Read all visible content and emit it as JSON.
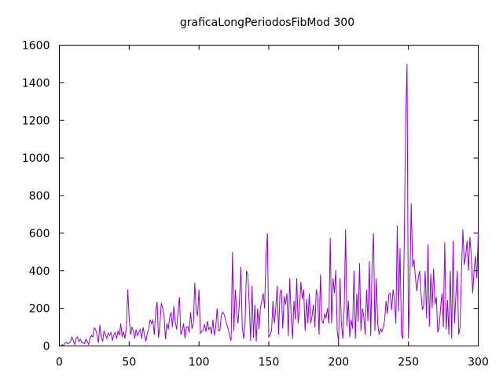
{
  "chart_data": {
    "type": "line",
    "title": "graficaLongPeriodosFibMod 300",
    "xlabel": "",
    "ylabel": "",
    "xlim": [
      0,
      300
    ],
    "ylim": [
      0,
      1600
    ],
    "xticks": [
      0,
      50,
      100,
      150,
      200,
      250,
      300
    ],
    "yticks": [
      0,
      200,
      400,
      600,
      800,
      1000,
      1200,
      1400,
      1600
    ],
    "grid": false,
    "legend": "none",
    "series_color": "#9400d3",
    "series": [
      {
        "values": [
          [
            1,
            3
          ],
          [
            2,
            8
          ],
          [
            3,
            1
          ],
          [
            4,
            16
          ],
          [
            5,
            20
          ],
          [
            6,
            12
          ],
          [
            7,
            16
          ],
          [
            8,
            24
          ],
          [
            9,
            48
          ],
          [
            10,
            28
          ],
          [
            11,
            8
          ],
          [
            12,
            40
          ],
          [
            13,
            48
          ],
          [
            14,
            24
          ],
          [
            15,
            36
          ],
          [
            16,
            20
          ],
          [
            17,
            20
          ],
          [
            18,
            12
          ],
          [
            19,
            36
          ],
          [
            20,
            24
          ],
          [
            21,
            8
          ],
          [
            22,
            40
          ],
          [
            23,
            56
          ],
          [
            24,
            48
          ],
          [
            25,
            96
          ],
          [
            26,
            88
          ],
          [
            27,
            60
          ],
          [
            28,
            16
          ],
          [
            29,
            112
          ],
          [
            30,
            48
          ],
          [
            31,
            24
          ],
          [
            32,
            80
          ],
          [
            33,
            60
          ],
          [
            34,
            40
          ],
          [
            35,
            68
          ],
          [
            36,
            56
          ],
          [
            37,
            72
          ],
          [
            38,
            28
          ],
          [
            39,
            60
          ],
          [
            40,
            72
          ],
          [
            41,
            40
          ],
          [
            42,
            80
          ],
          [
            43,
            56
          ],
          [
            44,
            120
          ],
          [
            45,
            48
          ],
          [
            46,
            76
          ],
          [
            47,
            40
          ],
          [
            48,
            100
          ],
          [
            49,
            300
          ],
          [
            50,
            150
          ],
          [
            51,
            60
          ],
          [
            52,
            100
          ],
          [
            53,
            80
          ],
          [
            54,
            40
          ],
          [
            55,
            88
          ],
          [
            56,
            56
          ],
          [
            57,
            72
          ],
          [
            58,
            88
          ],
          [
            59,
            40
          ],
          [
            60,
            100
          ],
          [
            61,
            56
          ],
          [
            62,
            24
          ],
          [
            63,
            68
          ],
          [
            64,
            88
          ],
          [
            65,
            140
          ],
          [
            66,
            120
          ],
          [
            67,
            136
          ],
          [
            68,
            60
          ],
          [
            69,
            180
          ],
          [
            70,
            236
          ],
          [
            71,
            44
          ],
          [
            72,
            112
          ],
          [
            73,
            228
          ],
          [
            74,
            200
          ],
          [
            75,
            160
          ],
          [
            76,
            36
          ],
          [
            77,
            120
          ],
          [
            78,
            88
          ],
          [
            79,
            152
          ],
          [
            80,
            180
          ],
          [
            81,
            100
          ],
          [
            82,
            212
          ],
          [
            83,
            128
          ],
          [
            84,
            88
          ],
          [
            85,
            188
          ],
          [
            86,
            260
          ],
          [
            87,
            60
          ],
          [
            88,
            80
          ],
          [
            89,
            120
          ],
          [
            90,
            40
          ],
          [
            91,
            100
          ],
          [
            92,
            104
          ],
          [
            93,
            72
          ],
          [
            94,
            180
          ],
          [
            95,
            92
          ],
          [
            96,
            120
          ],
          [
            97,
            336
          ],
          [
            98,
            192
          ],
          [
            99,
            160
          ],
          [
            100,
            300
          ],
          [
            101,
            68
          ],
          [
            102,
            80
          ],
          [
            103,
            84
          ],
          [
            104,
            116
          ],
          [
            105,
            76
          ],
          [
            106,
            132
          ],
          [
            107,
            88
          ],
          [
            108,
            100
          ],
          [
            109,
            64
          ],
          [
            110,
            140
          ],
          [
            111,
            56
          ],
          [
            112,
            100
          ],
          [
            113,
            200
          ],
          [
            114,
            80
          ],
          [
            115,
            84
          ],
          [
            116,
            164
          ],
          [
            117,
            180
          ],
          [
            118,
            168
          ],
          [
            119,
            140
          ],
          [
            120,
            112
          ],
          [
            121,
            88
          ],
          [
            122,
            48
          ],
          [
            123,
            28
          ],
          [
            124,
            500
          ],
          [
            125,
            80
          ],
          [
            126,
            300
          ],
          [
            127,
            180
          ],
          [
            128,
            120
          ],
          [
            129,
            240
          ],
          [
            130,
            420
          ],
          [
            131,
            100
          ],
          [
            132,
            40
          ],
          [
            133,
            120
          ],
          [
            134,
            400
          ],
          [
            135,
            380
          ],
          [
            136,
            220
          ],
          [
            137,
            28
          ],
          [
            138,
            320
          ],
          [
            139,
            44
          ],
          [
            140,
            220
          ],
          [
            141,
            24
          ],
          [
            142,
            200
          ],
          [
            143,
            88
          ],
          [
            144,
            200
          ],
          [
            145,
            240
          ],
          [
            146,
            280
          ],
          [
            147,
            200
          ],
          [
            148,
            480
          ],
          [
            149,
            600
          ],
          [
            150,
            48
          ],
          [
            151,
            60
          ],
          [
            152,
            84
          ],
          [
            153,
            240
          ],
          [
            154,
            120
          ],
          [
            155,
            200
          ],
          [
            156,
            320
          ],
          [
            157,
            60
          ],
          [
            158,
            280
          ],
          [
            159,
            300
          ],
          [
            160,
            92
          ],
          [
            161,
            264
          ],
          [
            162,
            220
          ],
          [
            163,
            280
          ],
          [
            164,
            52
          ],
          [
            165,
            360
          ],
          [
            166,
            160
          ],
          [
            167,
            40
          ],
          [
            168,
            240
          ],
          [
            169,
            140
          ],
          [
            170,
            360
          ],
          [
            171,
            120
          ],
          [
            172,
            200
          ],
          [
            173,
            340
          ],
          [
            174,
            250
          ],
          [
            175,
            300
          ],
          [
            176,
            80
          ],
          [
            177,
            250
          ],
          [
            178,
            120
          ],
          [
            179,
            280
          ],
          [
            180,
            120
          ],
          [
            181,
            160
          ],
          [
            182,
            220
          ],
          [
            183,
            100
          ],
          [
            184,
            300
          ],
          [
            185,
            260
          ],
          [
            186,
            60
          ],
          [
            187,
            380
          ],
          [
            188,
            140
          ],
          [
            189,
            120
          ],
          [
            190,
            172
          ],
          [
            191,
            148
          ],
          [
            192,
            200
          ],
          [
            193,
            120
          ],
          [
            194,
            576
          ],
          [
            195,
            120
          ],
          [
            196,
            360
          ],
          [
            197,
            280
          ],
          [
            198,
            404
          ],
          [
            199,
            80
          ],
          [
            200,
            20
          ],
          [
            201,
            360
          ],
          [
            202,
            120
          ],
          [
            203,
            40
          ],
          [
            204,
            200
          ],
          [
            205,
            620
          ],
          [
            206,
            104
          ],
          [
            207,
            240
          ],
          [
            208,
            48
          ],
          [
            209,
            140
          ],
          [
            210,
            92
          ],
          [
            211,
            400
          ],
          [
            212,
            40
          ],
          [
            213,
            280
          ],
          [
            214,
            128
          ],
          [
            215,
            440
          ],
          [
            216,
            80
          ],
          [
            217,
            200
          ],
          [
            218,
            160
          ],
          [
            219,
            60
          ],
          [
            220,
            300
          ],
          [
            221,
            132
          ],
          [
            222,
            452
          ],
          [
            223,
            52
          ],
          [
            224,
            440
          ],
          [
            225,
            600
          ],
          [
            226,
            80
          ],
          [
            227,
            360
          ],
          [
            228,
            120
          ],
          [
            229,
            60
          ],
          [
            230,
            92
          ],
          [
            231,
            76
          ],
          [
            232,
            100
          ],
          [
            233,
            140
          ],
          [
            234,
            240
          ],
          [
            235,
            172
          ],
          [
            236,
            276
          ],
          [
            237,
            280
          ],
          [
            238,
            192
          ],
          [
            239,
            300
          ],
          [
            240,
            244
          ],
          [
            241,
            120
          ],
          [
            242,
            640
          ],
          [
            243,
            184
          ],
          [
            244,
            520
          ],
          [
            245,
            60
          ],
          [
            246,
            40
          ],
          [
            247,
            560
          ],
          [
            248,
            1180
          ],
          [
            249,
            1500
          ],
          [
            250,
            40
          ],
          [
            251,
            320
          ],
          [
            252,
            760
          ],
          [
            253,
            420
          ],
          [
            254,
            460
          ],
          [
            255,
            364
          ],
          [
            256,
            292
          ],
          [
            257,
            360
          ],
          [
            258,
            400
          ],
          [
            259,
            280
          ],
          [
            260,
            192
          ],
          [
            261,
            216
          ],
          [
            262,
            400
          ],
          [
            263,
            148
          ],
          [
            264,
            540
          ],
          [
            265,
            104
          ],
          [
            266,
            384
          ],
          [
            267,
            200
          ],
          [
            268,
            412
          ],
          [
            269,
            220
          ],
          [
            270,
            260
          ],
          [
            271,
            72
          ],
          [
            272,
            100
          ],
          [
            273,
            200
          ],
          [
            274,
            280
          ],
          [
            275,
            100
          ],
          [
            276,
            552
          ],
          [
            277,
            88
          ],
          [
            278,
            244
          ],
          [
            279,
            60
          ],
          [
            280,
            400
          ],
          [
            281,
            40
          ],
          [
            282,
            560
          ],
          [
            283,
            120
          ],
          [
            284,
            272
          ],
          [
            285,
            400
          ],
          [
            286,
            60
          ],
          [
            287,
            100
          ],
          [
            288,
            400
          ],
          [
            289,
            620
          ],
          [
            290,
            432
          ],
          [
            291,
            480
          ],
          [
            292,
            560
          ],
          [
            293,
            400
          ],
          [
            294,
            580
          ],
          [
            295,
            480
          ],
          [
            296,
            280
          ],
          [
            297,
            400
          ],
          [
            298,
            480
          ],
          [
            299,
            360
          ],
          [
            300,
            600
          ]
        ]
      }
    ]
  }
}
